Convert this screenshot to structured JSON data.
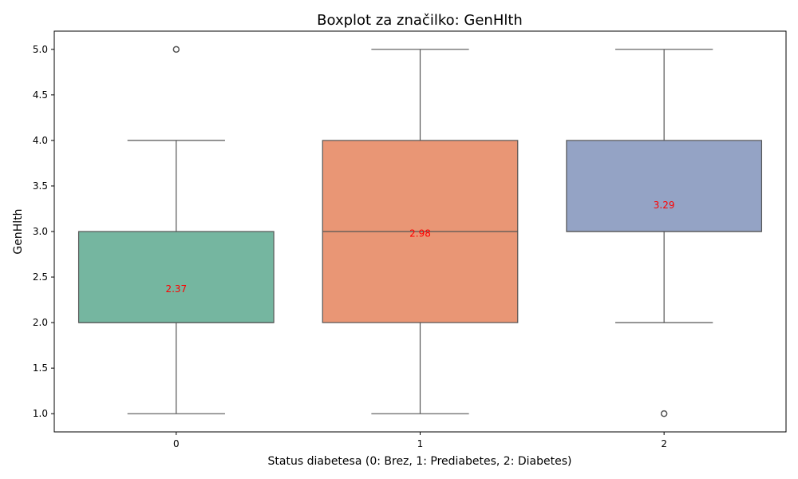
{
  "chart_data": {
    "type": "boxplot",
    "title": "Boxplot za značilko: GenHlth",
    "xlabel": "Status diabetesa (0: Brez, 1: Prediabetes, 2: Diabetes)",
    "ylabel": "GenHlth",
    "categories": [
      "0",
      "1",
      "2"
    ],
    "ylim": [
      0.8,
      5.2
    ],
    "yticks": [
      "1.0",
      "1.5",
      "2.0",
      "2.5",
      "3.0",
      "3.5",
      "4.0",
      "4.5",
      "5.0"
    ],
    "grid": false,
    "boxes": [
      {
        "category": "0",
        "whisker_low": 1.0,
        "q1": 2.0,
        "median": 2.0,
        "q3": 3.0,
        "whisker_high": 4.0,
        "outliers": [
          5.0
        ],
        "mean_label": "2.37",
        "mean": 2.37,
        "color": "#75b6a0"
      },
      {
        "category": "1",
        "whisker_low": 1.0,
        "q1": 2.0,
        "median": 3.0,
        "q3": 4.0,
        "whisker_high": 5.0,
        "outliers": [],
        "mean_label": "2.98",
        "mean": 2.98,
        "color": "#e99675"
      },
      {
        "category": "2",
        "whisker_low": 2.0,
        "q1": 3.0,
        "median": 3.0,
        "q3": 4.0,
        "whisker_high": 5.0,
        "outliers": [
          1.0
        ],
        "mean_label": "3.29",
        "mean": 3.29,
        "color": "#94a3c5"
      }
    ],
    "line_color": "#555555",
    "mean_label_color": "#ff0000"
  }
}
